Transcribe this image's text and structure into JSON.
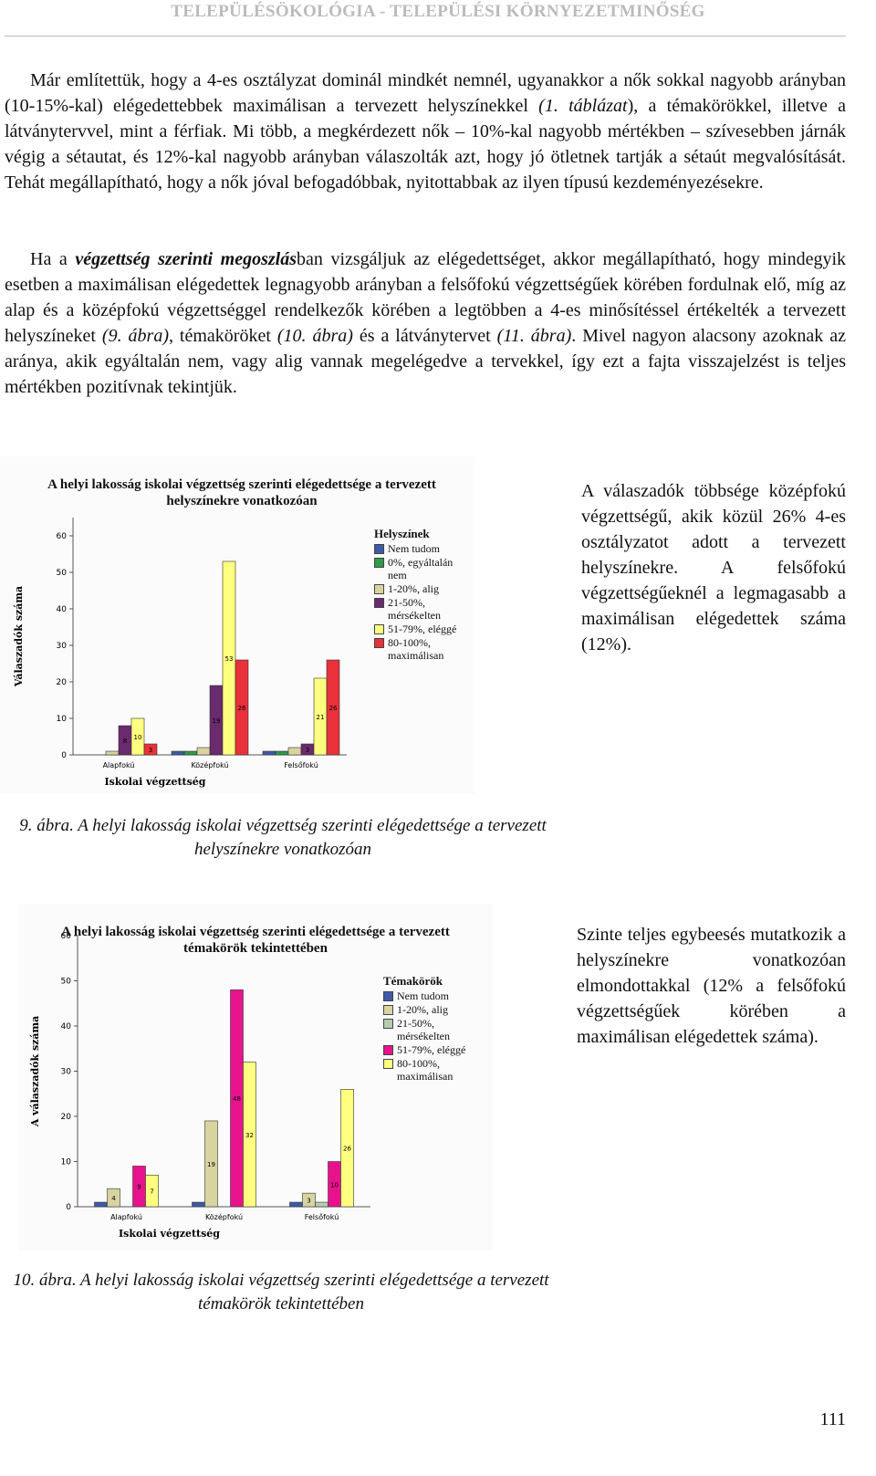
{
  "header": {
    "title": "TELEPÜLÉSÖKOLÓGIA - TELEPÜLÉSI KÖRNYEZETMINŐSÉG"
  },
  "paragraphs": [
    [
      "Már említettük, hogy a 4-es osztályzat dominál mindkét nemnél, ugyanakkor a nők sokkal nagyobb arányban (10-15%-kal) elégedettebbek maximálisan a tervezett helyszínekkel ",
      "(1. táblázat",
      "), a témakörökkel, illetve a látványtervvel, mint a férfiak. Mi több, a megkérdezett nők – 10%-kal nagyobb mértékben – szívesebben járnák végig a sétautat, és 12%-kal nagyobb arányban válaszolták azt, hogy jó ötletnek tartják a sétaút megvalósítását. Tehát megállapítható, hogy a nők jóval befogadóbbak, nyitottabbak az ilyen típusú kezdeményezésekre."
    ],
    [
      "Ha a ",
      "végzettség szerinti megoszlás",
      "ban vizsgáljuk az elégedettséget, akkor megállapítható, hogy mindegyik esetben a maximálisan elégedettek legnagyobb arányban a felsőfokú végzettségűek körében fordulnak elő, míg az alap és a középfokú végzettséggel rendelkezők körében a legtöbben a 4-es minősítéssel értékelték a tervezett helyszíneket ",
      "(9. ábra)",
      ", témaköröket ",
      "(10. ábra)",
      " és a látványtervet ",
      "(11. ábra)",
      ". Mivel nagyon alacsony azoknak az aránya, akik egyáltalán nem, vagy alig vannak megelégedve a tervekkel, így ezt a fajta visszajelzést is teljes mértékben pozitívnak tekintjük."
    ]
  ],
  "side_texts": [
    "A válaszadók többsége középfokú végzettségű, akik közül 26% 4-es osztályzatot adott a tervezett helyszínekre. A felsőfokú végzettségűeknél a legmagasabb a maximálisan elégedettek száma (12%).",
    "Szinte teljes egybeesés mutatkozik a helyszínekre vonatkozóan elmondottakkal (12% a felsőfokú végzettségűek körében a maximálisan elégedettek száma)."
  ],
  "captions": [
    "9. ábra. A helyi lakosság iskolai végzettség szerinti elégedettsége a tervezett helyszínekre vonatkozóan",
    "10. ábra. A helyi lakosság iskolai végzettség szerinti elégedettsége a tervezett témakörök tekintettében"
  ],
  "page_number": "111",
  "chart_data": [
    {
      "type": "bar",
      "title": "A helyi lakosság iskolai végzettség szerinti elégedettsége a tervezett helyszínekre vonatkozóan",
      "xlabel": "Iskolai végzettség",
      "ylabel": "Válaszadók száma",
      "legend_title": "Helyszínek",
      "categories": [
        "Alapfokú",
        "Középfokú",
        "Felsőfokú"
      ],
      "series": [
        {
          "name": "Nem tudom",
          "color": "#3d5aa8",
          "values": [
            0,
            1,
            1
          ]
        },
        {
          "name": "0%, egyáltalán nem",
          "color": "#2e9a4a",
          "values": [
            0,
            1,
            1
          ]
        },
        {
          "name": "1-20%, alig",
          "color": "#d8d4a0",
          "values": [
            1,
            2,
            2
          ]
        },
        {
          "name": "21-50%, mérsékelten",
          "color": "#6a2a6e",
          "values": [
            8,
            19,
            3
          ]
        },
        {
          "name": "51-79%, eléggé",
          "color": "#ffff80",
          "values": [
            10,
            53,
            21
          ]
        },
        {
          "name": "80-100%, maximálisan",
          "color": "#e8313a",
          "values": [
            3,
            26,
            26
          ]
        }
      ],
      "ylim": [
        0,
        65
      ],
      "yticks": [
        0,
        10,
        20,
        30,
        40,
        50,
        60
      ]
    },
    {
      "type": "bar",
      "title": "A helyi lakosság iskolai végzettség szerinti elégedettsége a tervezett témakörök tekintettében",
      "xlabel": "Iskolai végzettség",
      "ylabel": "A válaszadók száma",
      "legend_title": "Témakörök",
      "categories": [
        "Alapfokú",
        "Középfokú",
        "Felsőfokú"
      ],
      "series": [
        {
          "name": "Nem tudom",
          "color": "#3d5aa8",
          "values": [
            1,
            1,
            1
          ]
        },
        {
          "name": "1-20%, alig",
          "color": "#d8d4a0",
          "values": [
            4,
            19,
            3
          ]
        },
        {
          "name": "21-50%, mérsékelten",
          "color": "#b8ccb0",
          "values": [
            0,
            0,
            1
          ]
        },
        {
          "name": "51-79%, eléggé",
          "color": "#e8138c",
          "values": [
            9,
            48,
            10
          ]
        },
        {
          "name": "80-100%, maximálisan",
          "color": "#ffff80",
          "values": [
            7,
            32,
            26
          ]
        }
      ],
      "ylim": [
        0,
        60
      ],
      "yticks": [
        0,
        10,
        20,
        30,
        40,
        50,
        60
      ]
    }
  ]
}
